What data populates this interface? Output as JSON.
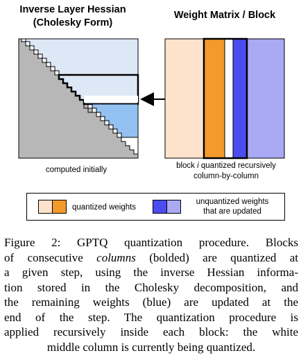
{
  "left_panel": {
    "title_line1": "Inverse Layer Hessian",
    "title_line2": "(Cholesky Form)",
    "caption": "computed initially"
  },
  "right_panel": {
    "title": "Weight Matrix / Block",
    "caption_line1": "block i quantized recursively",
    "caption_line2": "column-by-column"
  },
  "legend": {
    "quantized_label": "quantized weights",
    "updated_line1": "unquantized weights",
    "updated_line2": "that are updated"
  },
  "caption": {
    "line1": "Figure 2: GPTQ quantization procedure. Blocks",
    "line2_pre": "of consecutive ",
    "line2_em": "columns",
    "line2_post": " (bolded) are quantized at",
    "line3": "a given step, using the inverse Hessian informa-",
    "line4": "tion stored in the Cholesky decomposition, and",
    "line5": "the remaining weights (blue) are updated at the",
    "line6": "end of the step. The quantization procedure is",
    "line7": "applied recursively inside each block: the white",
    "line8": "middle column is currently being quantized."
  },
  "colors": {
    "quantized_light": "#fde3cc",
    "quantized_dark": "#f39a2c",
    "updated_light": "#a9a9f4",
    "updated_dark": "#4a4cf0",
    "hessian_light": "#dde8f7",
    "hessian_mid": "#93c1f1",
    "hessian_gray": "#b7b7b7"
  }
}
